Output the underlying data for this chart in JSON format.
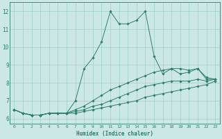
{
  "xlabel": "Humidex (Indice chaleur)",
  "xlim": [
    -0.5,
    23.5
  ],
  "ylim": [
    5.7,
    12.5
  ],
  "yticks": [
    6,
    7,
    8,
    9,
    10,
    11,
    12
  ],
  "xticks": [
    0,
    1,
    2,
    3,
    4,
    5,
    6,
    7,
    8,
    9,
    10,
    11,
    12,
    13,
    14,
    15,
    16,
    17,
    18,
    19,
    20,
    21,
    22,
    23
  ],
  "bg_color": "#cce8e6",
  "line_color": "#2e7d6e",
  "grid_color": "#9ecfcb",
  "line1_x": [
    0,
    1,
    2,
    3,
    4,
    5,
    6,
    7,
    8,
    9,
    10,
    11,
    12,
    13,
    14,
    15,
    16,
    17,
    18,
    19,
    20,
    21,
    22,
    23
  ],
  "line1_y": [
    6.5,
    6.3,
    6.2,
    6.2,
    6.3,
    6.3,
    6.3,
    7.0,
    8.8,
    9.4,
    10.3,
    12.0,
    11.3,
    11.3,
    11.5,
    12.0,
    9.5,
    8.5,
    8.8,
    8.5,
    8.6,
    8.8,
    8.3,
    8.2
  ],
  "line2_x": [
    0,
    1,
    2,
    3,
    4,
    5,
    6,
    7,
    8,
    9,
    10,
    11,
    12,
    13,
    14,
    15,
    16,
    17,
    18,
    19,
    20,
    21,
    22,
    23
  ],
  "line2_y": [
    6.5,
    6.3,
    6.2,
    6.2,
    6.3,
    6.3,
    6.3,
    6.5,
    6.7,
    7.0,
    7.3,
    7.6,
    7.8,
    8.0,
    8.2,
    8.4,
    8.6,
    8.7,
    8.8,
    8.8,
    8.7,
    8.8,
    8.2,
    8.2
  ],
  "line3_x": [
    0,
    1,
    2,
    3,
    4,
    5,
    6,
    7,
    8,
    9,
    10,
    11,
    12,
    13,
    14,
    15,
    16,
    17,
    18,
    19,
    20,
    21,
    22,
    23
  ],
  "line3_y": [
    6.5,
    6.3,
    6.2,
    6.2,
    6.3,
    6.3,
    6.3,
    6.4,
    6.5,
    6.7,
    6.8,
    7.0,
    7.2,
    7.4,
    7.6,
    7.8,
    7.9,
    8.0,
    8.1,
    8.1,
    8.1,
    8.2,
    8.1,
    8.2
  ],
  "line4_x": [
    0,
    1,
    2,
    3,
    4,
    5,
    6,
    7,
    8,
    9,
    10,
    11,
    12,
    13,
    14,
    15,
    16,
    17,
    18,
    19,
    20,
    21,
    22,
    23
  ],
  "line4_y": [
    6.5,
    6.3,
    6.2,
    6.2,
    6.3,
    6.3,
    6.3,
    6.3,
    6.4,
    6.5,
    6.6,
    6.7,
    6.8,
    6.9,
    7.0,
    7.2,
    7.3,
    7.4,
    7.5,
    7.6,
    7.7,
    7.8,
    7.9,
    8.1
  ]
}
